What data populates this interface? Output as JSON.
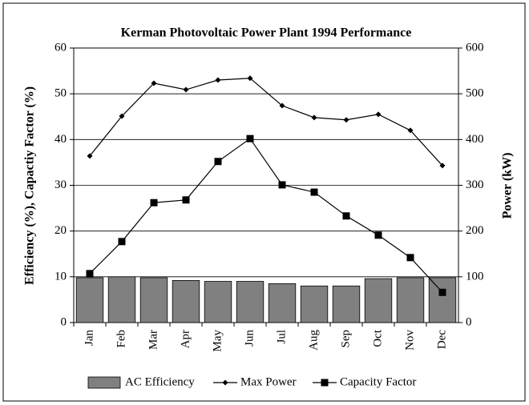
{
  "chart_data": {
    "type": "bar_line",
    "title": "Kerman Photovoltaic Power Plant 1994 Performance",
    "ylabel": "Efficiency (%), Capactiy Factor (%)",
    "y2label": "Power (kW)",
    "categories": [
      "Jan",
      "Feb",
      "Mar",
      "Apr",
      "May",
      "Jun",
      "Jul",
      "Aug",
      "Sep",
      "Oct",
      "Nov",
      "Dec"
    ],
    "series": [
      {
        "name": "AC Efficiency",
        "type": "bar",
        "color": "#808080",
        "values": [
          9.8,
          10,
          9.8,
          9.2,
          9.0,
          9.0,
          8.5,
          8.0,
          8.0,
          9.6,
          9.8,
          9.8
        ]
      },
      {
        "name": "Max Power",
        "type": "line",
        "marker": "diamond",
        "color": "#000000",
        "axis": "y2",
        "values": [
          364,
          451,
          523,
          509,
          530,
          534,
          474,
          448,
          443,
          455,
          420,
          343
        ]
      },
      {
        "name": "Capacity Factor",
        "type": "line",
        "marker": "square",
        "color": "#000000",
        "values": [
          10.7,
          17.7,
          26.2,
          26.8,
          35.2,
          40.2,
          30.1,
          28.5,
          23.3,
          19.1,
          14.2,
          6.6
        ]
      }
    ],
    "ylim": [
      0,
      60
    ],
    "yticks": [
      0,
      10,
      20,
      30,
      40,
      50,
      60
    ],
    "y2lim": [
      0,
      600
    ],
    "y2ticks": [
      0,
      100,
      200,
      300,
      400,
      500,
      600
    ],
    "grid": true,
    "legend": "bottom"
  }
}
